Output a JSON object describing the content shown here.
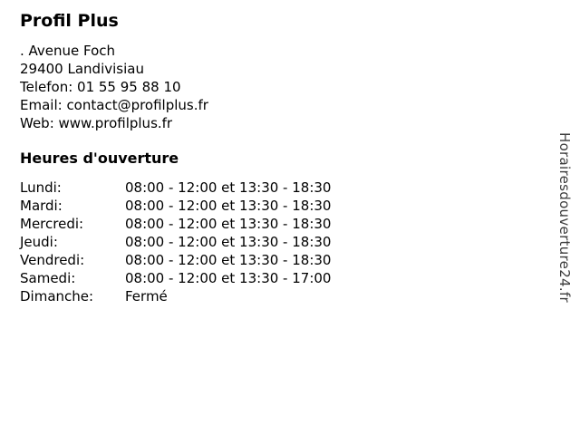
{
  "business": {
    "name": "Profil Plus",
    "details": [
      ". Avenue Foch",
      "29400 Landivisiau",
      "Telefon: 01 55 95 88 10",
      "Email: contact@profilplus.fr",
      "Web: www.profilplus.fr"
    ]
  },
  "hours": {
    "heading": "Heures d'ouverture",
    "rows": [
      {
        "day": "Lundi:",
        "time": "08:00 - 12:00 et 13:30 - 18:30"
      },
      {
        "day": "Mardi:",
        "time": "08:00 - 12:00 et 13:30 - 18:30"
      },
      {
        "day": "Mercredi:",
        "time": "08:00 - 12:00 et 13:30 - 18:30"
      },
      {
        "day": "Jeudi:",
        "time": "08:00 - 12:00 et 13:30 - 18:30"
      },
      {
        "day": "Vendredi:",
        "time": "08:00 - 12:00 et 13:30 - 18:30"
      },
      {
        "day": "Samedi:",
        "time": "08:00 - 12:00 et 13:30 - 17:00"
      },
      {
        "day": "Dimanche:",
        "time": "Fermé"
      }
    ]
  },
  "watermark": {
    "text": "Horairesdouverture24.fr"
  },
  "colors": {
    "text": "#000000",
    "watermark": "#3c3c3c",
    "background": "#ffffff"
  }
}
